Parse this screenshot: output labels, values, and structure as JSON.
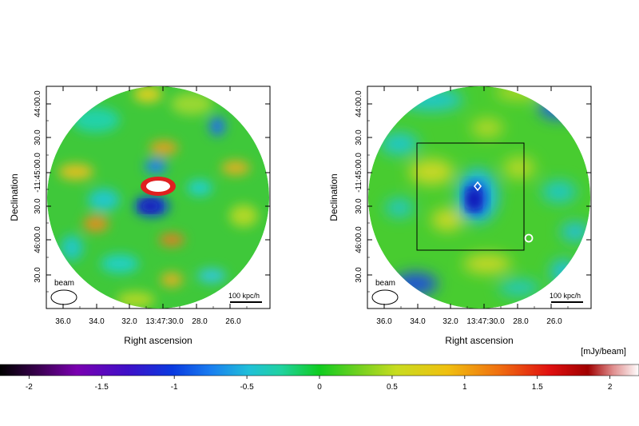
{
  "panels": [
    {
      "id": "left",
      "xlabel": "Right ascension",
      "ylabel": "Declination",
      "xticks": [
        "36.0",
        "34.0",
        "32.0",
        "13:47:30.0",
        "28.0",
        "26.0"
      ],
      "yticks": [
        "44:00.0",
        "30.0",
        "-11:45:00.0",
        "30.0",
        "46:00.0",
        "30.0"
      ],
      "beam_label": "beam",
      "scale_label": "100 kpc/h"
    },
    {
      "id": "right",
      "xlabel": "Right ascension",
      "ylabel": "Declination",
      "xticks": [
        "36.0",
        "34.0",
        "32.0",
        "13:47:30.0",
        "28.0",
        "26.0"
      ],
      "yticks": [
        "44:00.0",
        "30.0",
        "-11:45:00.0",
        "30.0",
        "46:00.0",
        "30.0"
      ],
      "beam_label": "beam",
      "scale_label": "100 kpc/h"
    }
  ],
  "colorbar": {
    "unit": "[mJy/beam]",
    "ticks": [
      "-2",
      "-1.5",
      "-1",
      "-0.5",
      "0",
      "0.5",
      "1",
      "1.5",
      "2"
    ],
    "range": [
      -2.2,
      2.2
    ]
  }
}
